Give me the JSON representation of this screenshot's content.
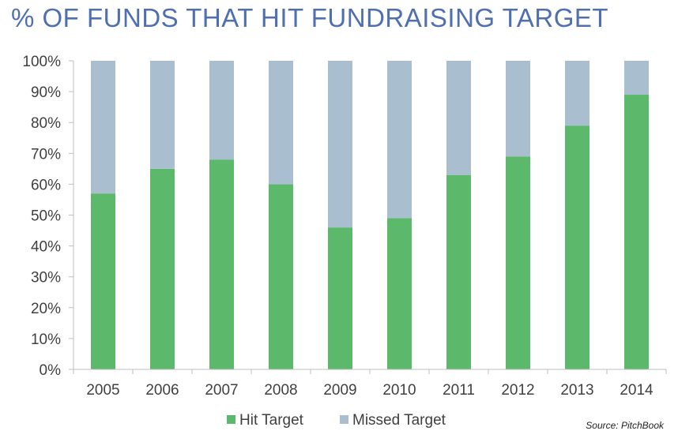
{
  "chart_data": {
    "type": "bar",
    "stacked": true,
    "title": "% OF FUNDS THAT HIT FUNDRAISING TARGET",
    "xlabel": "",
    "ylabel": "",
    "ylim": [
      0,
      100
    ],
    "y_ticks": [
      "0%",
      "10%",
      "20%",
      "30%",
      "40%",
      "50%",
      "60%",
      "70%",
      "80%",
      "90%",
      "100%"
    ],
    "categories": [
      "2005",
      "2006",
      "2007",
      "2008",
      "2009",
      "2010",
      "2011",
      "2012",
      "2013",
      "2014"
    ],
    "series": [
      {
        "name": "Hit Target",
        "color": "#5cb96c",
        "values": [
          57,
          65,
          68,
          60,
          46,
          49,
          63,
          69,
          79,
          89
        ]
      },
      {
        "name": "Missed Target",
        "color": "#a9bfcf",
        "values": [
          43,
          35,
          32,
          40,
          54,
          51,
          37,
          31,
          21,
          11
        ]
      }
    ],
    "grid": false,
    "legend_position": "bottom",
    "source": "Source: PitchBook"
  }
}
